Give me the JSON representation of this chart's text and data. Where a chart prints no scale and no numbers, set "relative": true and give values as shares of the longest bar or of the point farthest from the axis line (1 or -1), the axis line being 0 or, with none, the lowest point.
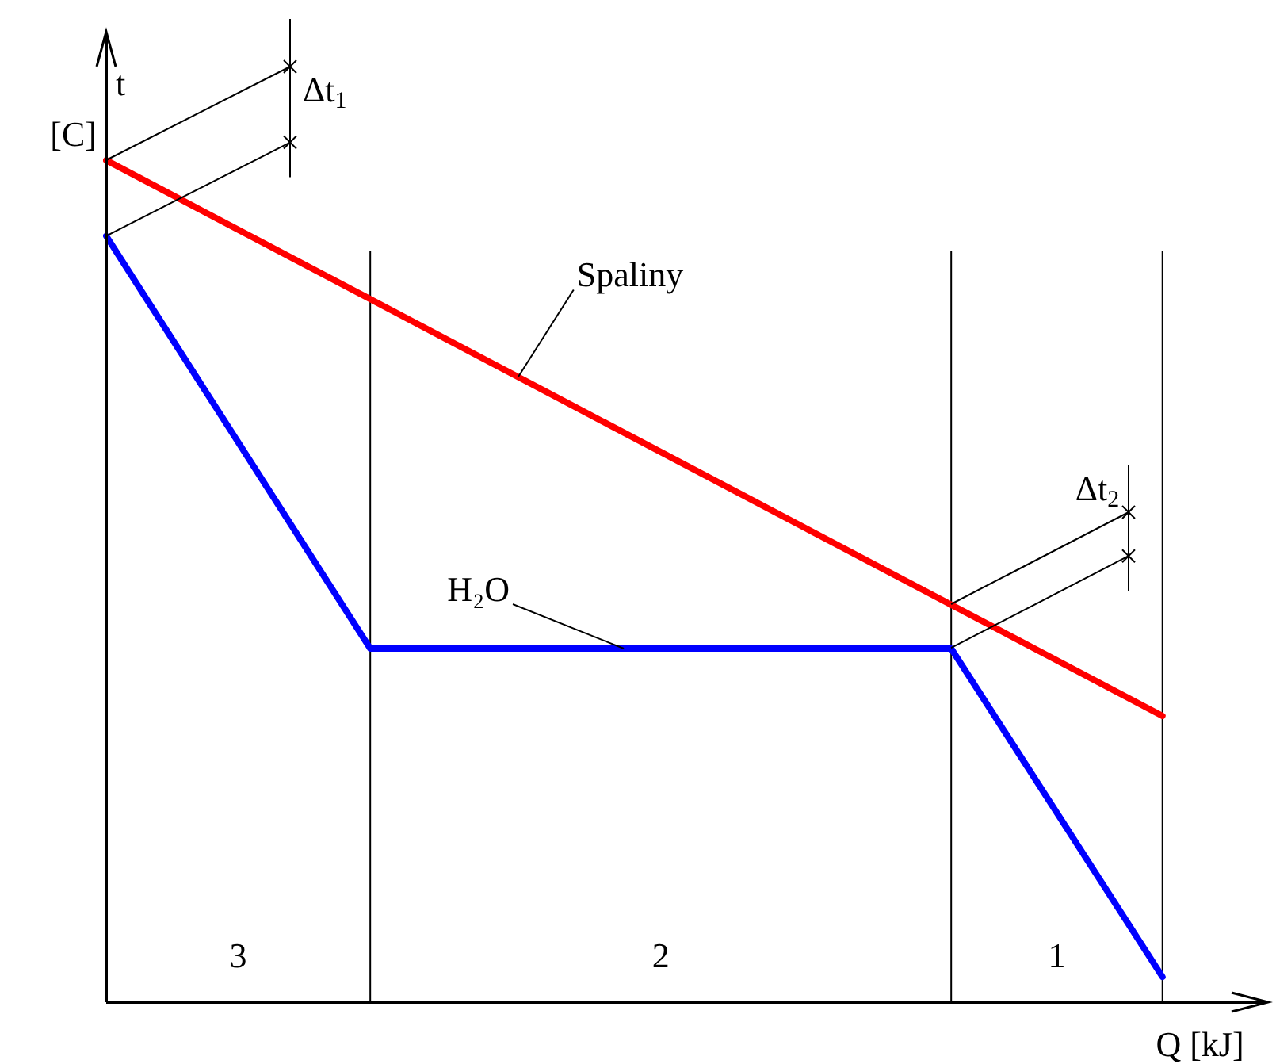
{
  "chart_data": {
    "type": "line",
    "relative": true,
    "grid": "x",
    "xlabel": "Q [kJ]",
    "ylabel": "t [C]",
    "legend": false,
    "marker": "none",
    "line_style": "solid",
    "categories": [
      null,
      null,
      null,
      null,
      null,
      null,
      null,
      null,
      null,
      null,
      null,
      null,
      null,
      null,
      null,
      null,
      null,
      null,
      null,
      null,
      null,
      null,
      null,
      null,
      null,
      null,
      null,
      null,
      null,
      null,
      null,
      null,
      null,
      null,
      null,
      null,
      null,
      null,
      null,
      null,
      null,
      null,
      null,
      null,
      null
    ],
    "series": [
      {
        "name": "Spaliny",
        "color": "#ff0000",
        "values": [
          1,
          null,
          null,
          null,
          null,
          null,
          null,
          null,
          null,
          null,
          null,
          null,
          null,
          null,
          null,
          null,
          null,
          null,
          null,
          null,
          null,
          null,
          null,
          null,
          null,
          null,
          null,
          null,
          null,
          null,
          null,
          null,
          null,
          null,
          null,
          null,
          null,
          null,
          null,
          null,
          0.34,
          null,
          null,
          null,
          null
        ]
      },
      {
        "name": "H₂O",
        "color": "#0000ff",
        "values": [
          0.91,
          null,
          null,
          null,
          null,
          null,
          null,
          null,
          null,
          null,
          0.42,
          null,
          null,
          null,
          null,
          null,
          null,
          null,
          null,
          null,
          null,
          null,
          null,
          null,
          null,
          null,
          null,
          null,
          null,
          null,
          null,
          null,
          0.42,
          null,
          null,
          null,
          null,
          null,
          null,
          null,
          0.03,
          null,
          null,
          null,
          null
        ]
      }
    ],
    "annotations": [
      "3",
      "2",
      "1",
      "Δt$_{1}$",
      "Δt$_{2}$"
    ]
  }
}
